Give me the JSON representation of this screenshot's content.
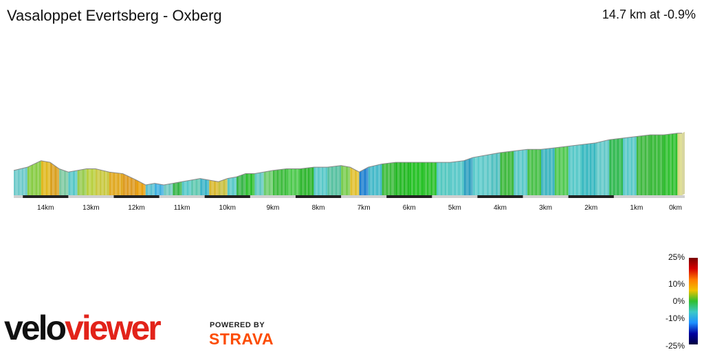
{
  "header": {
    "title": "Vasaloppet Evertsberg - Oxberg",
    "summary": "14.7 km at -0.9%"
  },
  "chart_data": {
    "type": "area",
    "distance_km": 14.7,
    "average_gradient": "-0.9%",
    "x_direction": "reversed",
    "xlim": [
      0,
      14.7
    ],
    "x_ticks": [
      {
        "value": 14,
        "label": "14km"
      },
      {
        "value": 13,
        "label": "13km"
      },
      {
        "value": 12,
        "label": "12km"
      },
      {
        "value": 11,
        "label": "11km"
      },
      {
        "value": 10,
        "label": "10km"
      },
      {
        "value": 9,
        "label": "9km"
      },
      {
        "value": 8,
        "label": "8km"
      },
      {
        "value": 7,
        "label": "7km"
      },
      {
        "value": 6,
        "label": "6km"
      },
      {
        "value": 5,
        "label": "5km"
      },
      {
        "value": 4,
        "label": "4km"
      },
      {
        "value": 3,
        "label": "3km"
      },
      {
        "value": 2,
        "label": "2km"
      },
      {
        "value": 1,
        "label": "1km"
      },
      {
        "value": 0,
        "label": "0km"
      }
    ],
    "profile": {
      "x": [
        14.7,
        14.4,
        14.1,
        13.9,
        13.7,
        13.5,
        13.3,
        13.1,
        12.9,
        12.6,
        12.3,
        12.0,
        11.8,
        11.6,
        11.4,
        11.2,
        11.0,
        10.8,
        10.6,
        10.4,
        10.2,
        10.0,
        9.8,
        9.6,
        9.4,
        9.2,
        9.0,
        8.7,
        8.4,
        8.1,
        7.8,
        7.5,
        7.3,
        7.1,
        6.9,
        6.6,
        6.3,
        6.0,
        5.7,
        5.4,
        5.1,
        4.8,
        4.6,
        4.4,
        4.2,
        4.0,
        3.7,
        3.4,
        3.1,
        2.8,
        2.5,
        2.2,
        1.9,
        1.6,
        1.3,
        1.0,
        0.7,
        0.4,
        0.1,
        0.0
      ],
      "elevation_rel": [
        9,
        11,
        15,
        14,
        10,
        8,
        9,
        10,
        10,
        8,
        7,
        3,
        0,
        1,
        0,
        1,
        2,
        3,
        4,
        3,
        2,
        4,
        5,
        7,
        7,
        8,
        9,
        10,
        10,
        11,
        11,
        12,
        11,
        8,
        11,
        13,
        14,
        14,
        14,
        14,
        14,
        15,
        17,
        18,
        19,
        20,
        21,
        22,
        22,
        23,
        24,
        25,
        26,
        28,
        29,
        30,
        31,
        31,
        32,
        32
      ],
      "gradient_pct": [
        -2,
        4,
        1,
        -3,
        -4,
        2,
        1,
        0,
        -1,
        -4,
        -6,
        -8,
        -1,
        1,
        -2,
        2,
        1,
        2,
        1,
        -3,
        -2,
        3,
        2,
        4,
        0,
        2,
        1,
        0,
        1,
        0,
        1,
        -2,
        -1,
        -7,
        2,
        3,
        1,
        0,
        0,
        0,
        1,
        2,
        3,
        2,
        1,
        2,
        1,
        1,
        0,
        2,
        1,
        1,
        2,
        3,
        1,
        2,
        1,
        0,
        3,
        0
      ],
      "segment_colors": [
        "#6dc9c9",
        "#88cc44",
        "#e0b820",
        "#d9a020",
        "#7dc9a0",
        "#58c8c8",
        "#98cc50",
        "#b8d040",
        "#c8c840",
        "#e0a820",
        "#dd9a20",
        "#e8a010",
        "#5ac0d0",
        "#40b0e0",
        "#70c8c0",
        "#39b54a",
        "#56c8c8",
        "#60c8b0",
        "#3cb4c8",
        "#d8b830",
        "#c8c040",
        "#58c8c8",
        "#39b54a",
        "#2fbf2f",
        "#60c8c0",
        "#6dcc6d",
        "#3dbb3d",
        "#4cc84c",
        "#2db52d",
        "#58c8c8",
        "#56c0a0",
        "#7acc50",
        "#e0c030",
        "#2080d0",
        "#42b8c8",
        "#3dbb3d",
        "#24b824",
        "#22c022",
        "#2bc02b",
        "#54c8c0",
        "#58c8c8",
        "#30a0c0",
        "#5ccccc",
        "#60c8c8",
        "#50c0c0",
        "#3db83d",
        "#5ac8c8",
        "#48c048",
        "#3cb4c0",
        "#50c850",
        "#56c8c8",
        "#38b8c0",
        "#62c8c8",
        "#30b850",
        "#58c8c8",
        "#40b840",
        "#36b836",
        "#2fbf2f",
        "#d8d880"
      ]
    },
    "legend": {
      "title": "",
      "labels": [
        "25%",
        "10%",
        "0%",
        "-10%",
        "-25%"
      ],
      "colors": [
        "#7a0000",
        "#d40000",
        "#ff7a00",
        "#f2c200",
        "#2fbf2f",
        "#3cc8c8",
        "#1e90ff",
        "#0000a0",
        "#000040"
      ]
    }
  },
  "branding": {
    "velo": "velo",
    "viewer": "viewer",
    "powered_by": "POWERED BY",
    "strava": "STRAVA"
  }
}
